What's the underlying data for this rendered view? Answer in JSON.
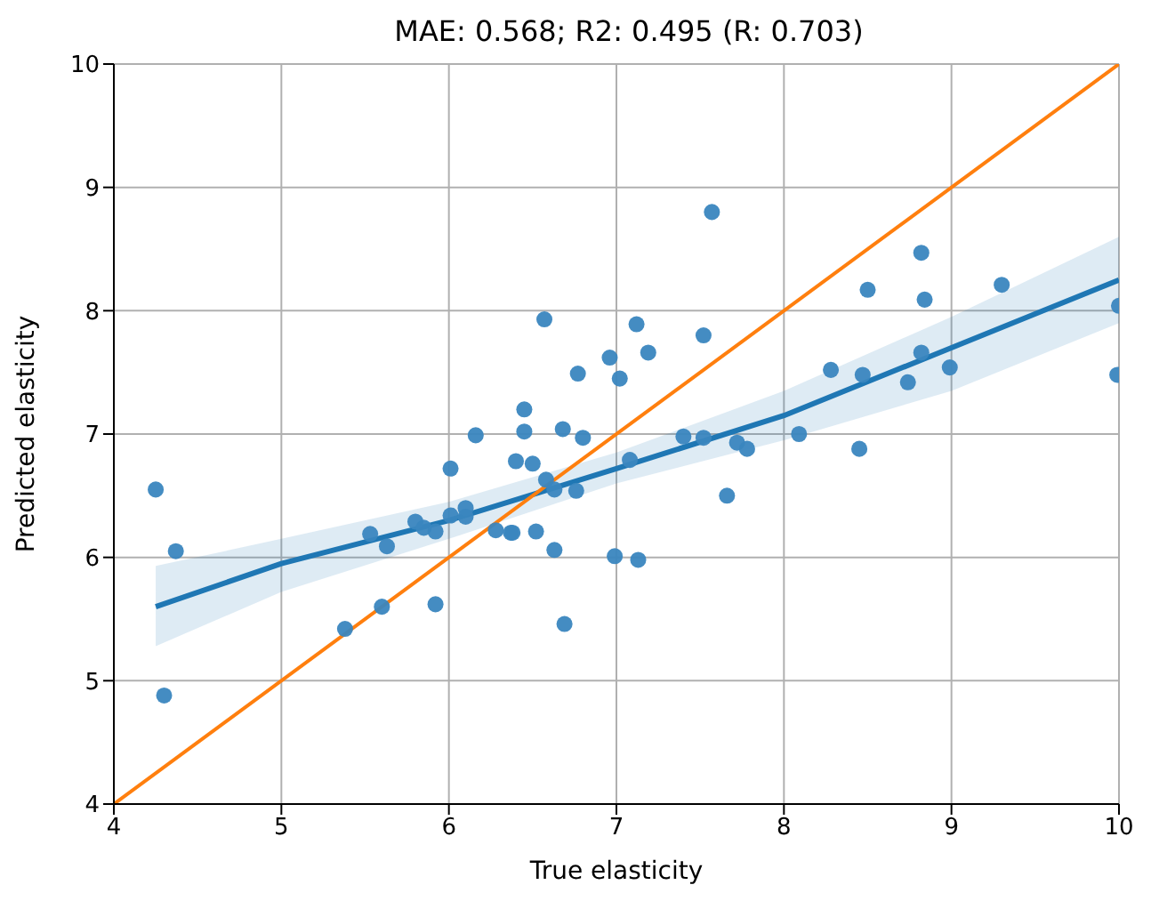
{
  "chart_data": {
    "type": "scatter",
    "title": "MAE: 0.568; R2: 0.495 (R: 0.703)",
    "xlabel": "True elasticity",
    "ylabel": "Predicted elasticity",
    "xlim": [
      4,
      10
    ],
    "ylim": [
      4,
      10
    ],
    "xticks": [
      4,
      5,
      6,
      7,
      8,
      9,
      10
    ],
    "yticks": [
      4,
      5,
      6,
      7,
      8,
      9,
      10
    ],
    "grid": true,
    "series": [
      {
        "marker": "circle",
        "color": "#3a86bf",
        "x": [
          4.25,
          4.3,
          4.37,
          5.38,
          5.53,
          5.6,
          5.63,
          5.8,
          5.85,
          5.92,
          5.92,
          6.01,
          6.01,
          6.1,
          6.1,
          6.16,
          6.28,
          6.37,
          6.38,
          6.4,
          6.45,
          6.45,
          6.5,
          6.52,
          6.57,
          6.58,
          6.63,
          6.63,
          6.68,
          6.69,
          6.76,
          6.77,
          6.8,
          6.96,
          6.99,
          7.02,
          7.08,
          7.12,
          7.13,
          7.19,
          7.4,
          7.52,
          7.52,
          7.57,
          7.66,
          7.72,
          7.78,
          8.09,
          8.28,
          8.45,
          8.47,
          8.5,
          8.74,
          8.82,
          8.82,
          8.84,
          8.99,
          9.3,
          9.99,
          10.0
        ],
        "values": [
          6.55,
          4.88,
          6.05,
          5.42,
          6.19,
          5.6,
          6.09,
          6.29,
          6.24,
          6.21,
          5.62,
          6.34,
          6.72,
          6.4,
          6.33,
          6.99,
          6.22,
          6.2,
          6.2,
          6.78,
          7.02,
          7.2,
          6.76,
          6.21,
          7.93,
          6.63,
          6.55,
          6.06,
          7.04,
          5.46,
          6.54,
          7.49,
          6.97,
          7.62,
          6.01,
          7.45,
          6.79,
          7.89,
          5.98,
          7.66,
          6.98,
          6.97,
          7.8,
          8.8,
          6.5,
          6.93,
          6.88,
          7.0,
          7.52,
          6.88,
          7.48,
          8.17,
          7.42,
          8.47,
          7.66,
          8.09,
          7.54,
          8.21,
          7.48,
          8.04
        ]
      },
      {
        "type": "line",
        "color": "#1f77b4",
        "x": [
          4.25,
          5,
          6,
          7,
          8,
          9,
          10
        ],
        "values": [
          5.6,
          5.95,
          6.3,
          6.72,
          7.15,
          7.7,
          8.25
        ],
        "lower": [
          5.28,
          5.72,
          6.15,
          6.6,
          6.95,
          7.35,
          7.9
        ],
        "upper": [
          5.93,
          6.15,
          6.45,
          6.85,
          7.35,
          7.95,
          8.6
        ]
      },
      {
        "type": "line",
        "color": "#ff7f0e",
        "x": [
          4,
          10
        ],
        "values": [
          4,
          10
        ]
      }
    ]
  }
}
